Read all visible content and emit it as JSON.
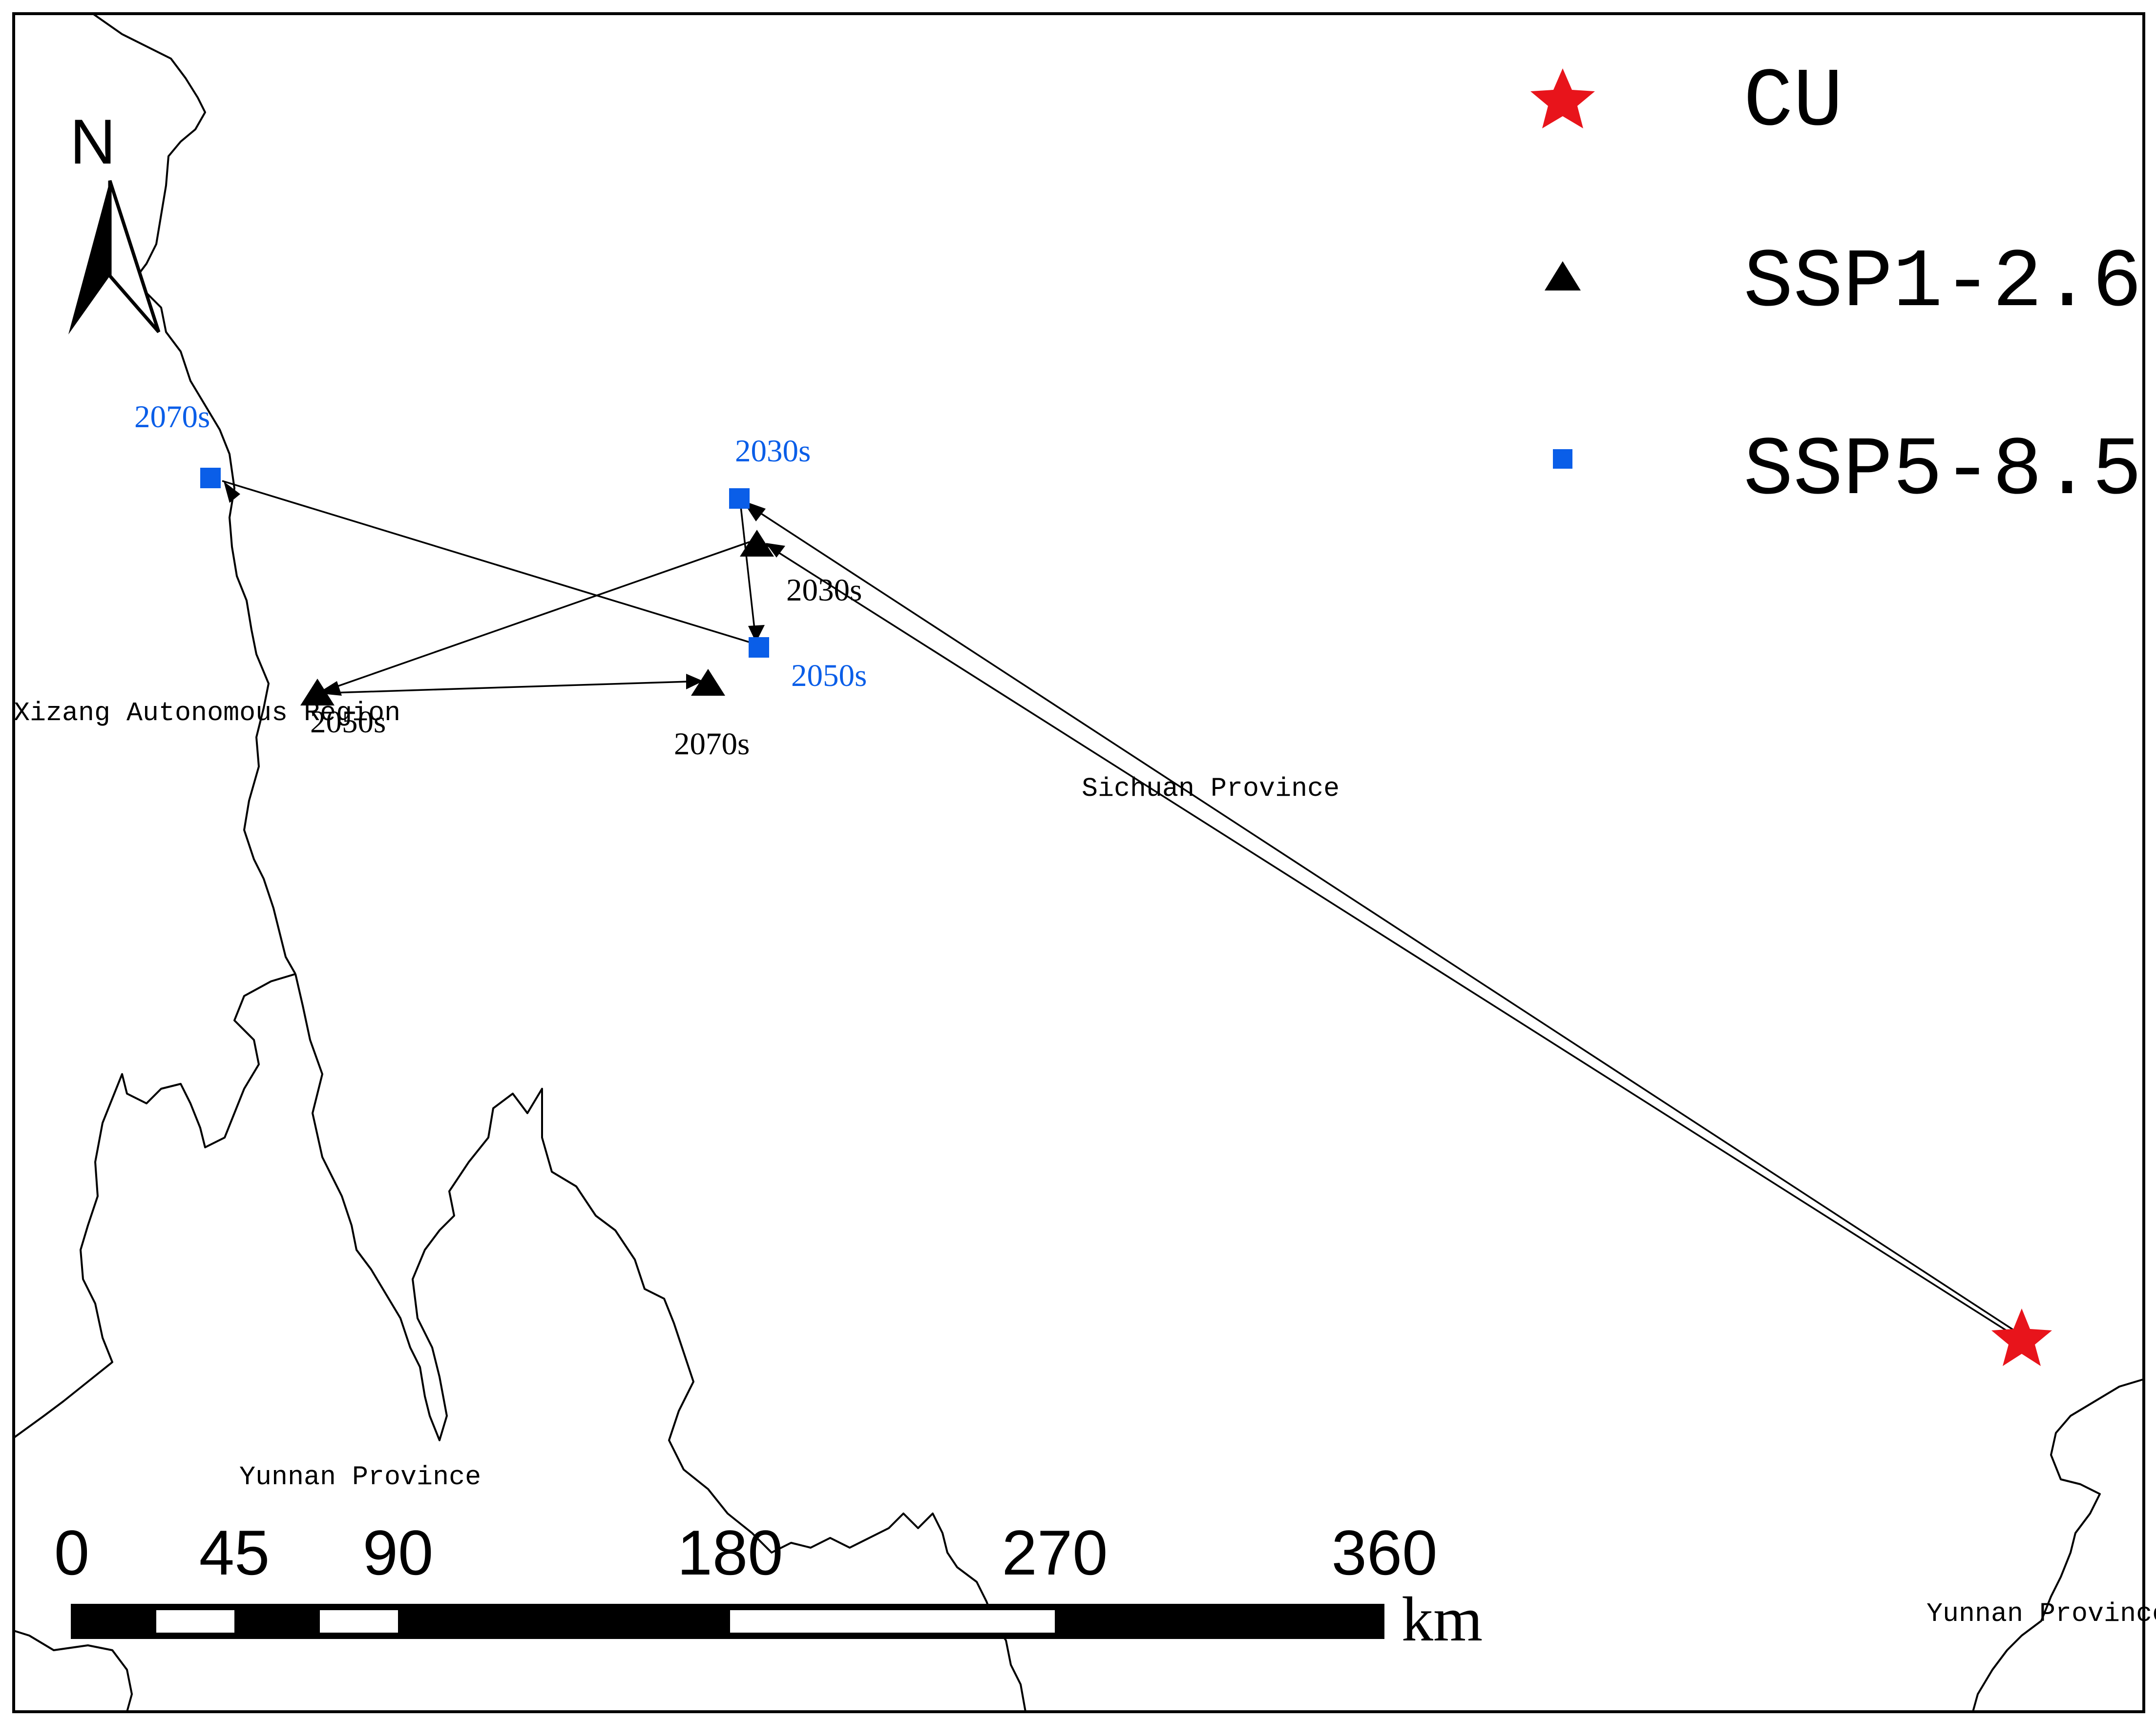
{
  "regions": {
    "xizang": "Xizang Autonomous Region",
    "sichuan": "Sichuan Province",
    "yunnan_west": "Yunnan Province",
    "yunnan_east": "Yunnan Province"
  },
  "north_arrow": {
    "label": "N",
    "icon": "north-arrow-icon"
  },
  "legend": {
    "items": [
      {
        "label": "CU",
        "symbol": "star-icon",
        "color": "#e8141b"
      },
      {
        "label": "SSP1-2.6",
        "symbol": "triangle-icon",
        "color": "#000000"
      },
      {
        "label": "SSP5-8.5",
        "symbol": "square-icon",
        "color": "#0a5ee8"
      }
    ]
  },
  "centroids": {
    "ssp126": {
      "color": "#000000",
      "points": [
        {
          "label": "2030s"
        },
        {
          "label": "2050s"
        },
        {
          "label": "2070s"
        }
      ]
    },
    "ssp585": {
      "color": "#0a5ee8",
      "points": [
        {
          "label": "2030s"
        },
        {
          "label": "2050s"
        },
        {
          "label": "2070s"
        }
      ]
    },
    "current": {
      "label": "CU",
      "color": "#e8141b"
    }
  },
  "scale_bar": {
    "ticks": [
      "0",
      "45",
      "90",
      "180",
      "270",
      "360"
    ],
    "unit": "km"
  }
}
